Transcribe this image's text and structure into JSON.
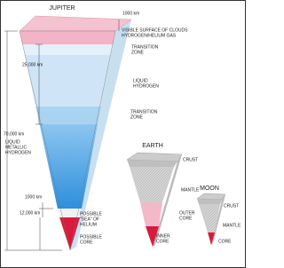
{
  "jupiter": {
    "title": "JUPITER",
    "labels": [
      [
        "VISIBLE SURFACE OF CLOUDS",
        "HYDROGEN/HELIUM GAS"
      ],
      [
        "TRANSITION",
        "ZONE"
      ],
      [
        "LIQUID",
        "HYDROGEN"
      ],
      [
        "TRANSITION",
        "ZONE"
      ],
      [
        "LIQUID",
        "METALLIC",
        "HYDROGEN"
      ],
      [
        "POSSIBLE",
        "\"SEA\" OF",
        "HELIUM"
      ],
      [
        "POSSIBLE",
        "CORE"
      ]
    ],
    "distances": [
      "1000 km",
      "25,000 km",
      "70,000 km",
      "1000 km",
      "12,000 km"
    ]
  },
  "earth": {
    "title": "EARTH",
    "labels": [
      [
        "CRUST"
      ],
      [
        "MANTLE"
      ],
      [
        "OUTER",
        "CORE"
      ],
      [
        "INNER",
        "CORE"
      ]
    ]
  },
  "moon": {
    "title": "MOON",
    "labels": [
      [
        "CRUST"
      ],
      [
        "MANTLE"
      ],
      [
        "CORE"
      ]
    ]
  }
}
